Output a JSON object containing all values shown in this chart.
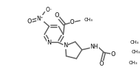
{
  "bg_color": "#ffffff",
  "line_color": "#606060",
  "line_width": 1.15,
  "font_size": 6.0,
  "figsize": [
    2.04,
    1.2
  ],
  "dpi": 100,
  "xlim": [
    -5,
    199
  ],
  "ylim": [
    -5,
    115
  ]
}
